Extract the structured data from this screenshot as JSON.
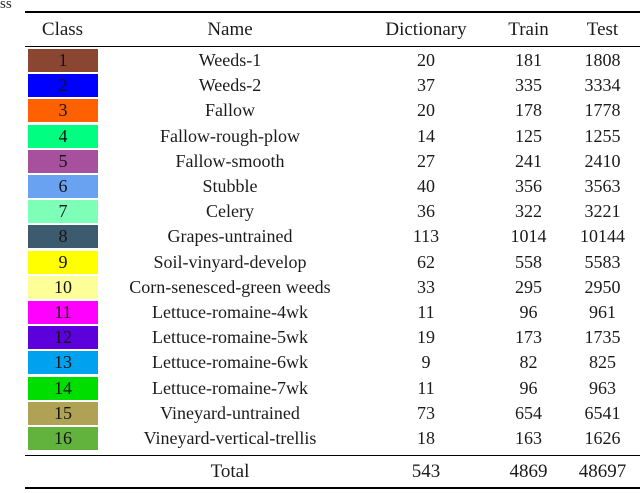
{
  "caption_fragment": "ss",
  "table": {
    "headers": [
      "Class",
      "Name",
      "Dictionary",
      "Train",
      "Test"
    ],
    "rows": [
      {
        "class": "1",
        "color": "#8B4631",
        "name": "Weeds-1",
        "dictionary": "20",
        "train": "181",
        "test": "1808"
      },
      {
        "class": "2",
        "color": "#0000FF",
        "name": "Weeds-2",
        "dictionary": "37",
        "train": "335",
        "test": "3334"
      },
      {
        "class": "3",
        "color": "#FF6000",
        "name": "Fallow",
        "dictionary": "20",
        "train": "178",
        "test": "1778"
      },
      {
        "class": "4",
        "color": "#00FF80",
        "name": "Fallow-rough-plow",
        "dictionary": "14",
        "train": "125",
        "test": "1255"
      },
      {
        "class": "5",
        "color": "#A6509E",
        "name": "Fallow-smooth",
        "dictionary": "27",
        "train": "241",
        "test": "2410"
      },
      {
        "class": "6",
        "color": "#6AA2F2",
        "name": "Stubble",
        "dictionary": "40",
        "train": "356",
        "test": "3563"
      },
      {
        "class": "7",
        "color": "#7DFFB8",
        "name": "Celery",
        "dictionary": "36",
        "train": "322",
        "test": "3221"
      },
      {
        "class": "8",
        "color": "#3C5B6F",
        "name": "Grapes-untrained",
        "dictionary": "113",
        "train": "1014",
        "test": "10144"
      },
      {
        "class": "9",
        "color": "#FFFF00",
        "name": "Soil-vinyard-develop",
        "dictionary": "62",
        "train": "558",
        "test": "5583"
      },
      {
        "class": "10",
        "color": "#FFFF99",
        "name": "Corn-senesced-green weeds",
        "dictionary": "33",
        "train": "295",
        "test": "2950"
      },
      {
        "class": "11",
        "color": "#FF00FF",
        "name": "Lettuce-romaine-4wk",
        "dictionary": "11",
        "train": "96",
        "test": "961"
      },
      {
        "class": "12",
        "color": "#5C00DC",
        "name": "Lettuce-romaine-5wk",
        "dictionary": "19",
        "train": "173",
        "test": "1735"
      },
      {
        "class": "13",
        "color": "#00A2EF",
        "name": "Lettuce-romaine-6wk",
        "dictionary": "9",
        "train": "82",
        "test": "825"
      },
      {
        "class": "14",
        "color": "#00DE00",
        "name": "Lettuce-romaine-7wk",
        "dictionary": "11",
        "train": "96",
        "test": "963"
      },
      {
        "class": "15",
        "color": "#B0A254",
        "name": "Vineyard-untrained",
        "dictionary": "73",
        "train": "654",
        "test": "6541"
      },
      {
        "class": "16",
        "color": "#61B33E",
        "name": "Vineyard-vertical-trellis",
        "dictionary": "18",
        "train": "163",
        "test": "1626"
      }
    ],
    "total": {
      "label": "Total",
      "dictionary": "543",
      "train": "4869",
      "test": "48697"
    }
  }
}
